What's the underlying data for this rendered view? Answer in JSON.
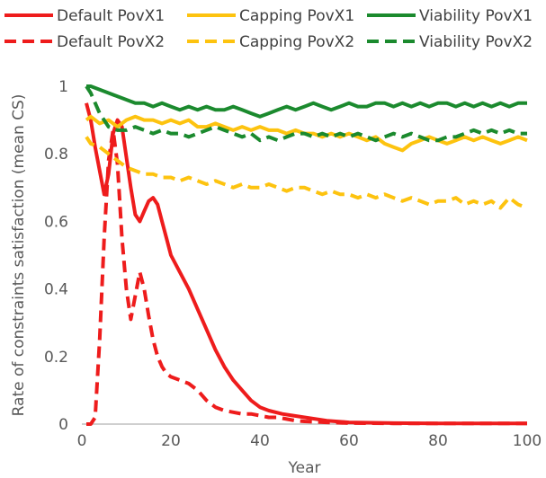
{
  "chart_data": {
    "type": "line",
    "xlabel": "Year",
    "ylabel": "Rate of constraints satisfaction (mean CS)",
    "xlim": [
      0,
      100
    ],
    "ylim": [
      0,
      1
    ],
    "x_ticks": [
      0,
      20,
      40,
      60,
      80,
      100
    ],
    "y_ticks": [
      0,
      0.2,
      0.4,
      0.6,
      0.8,
      1
    ],
    "y_tick_labels": [
      "0",
      "0.2",
      "0.4",
      "0.6",
      "0.8",
      "1"
    ],
    "grid": false,
    "legend_position": "top",
    "series": [
      {
        "name": "Default  PovX1",
        "color": "#ee1c1c",
        "dash": "solid",
        "points": [
          [
            1,
            0.95
          ],
          [
            2,
            0.9
          ],
          [
            3,
            0.82
          ],
          [
            4,
            0.75
          ],
          [
            5,
            0.68
          ],
          [
            6,
            0.74
          ],
          [
            7,
            0.86
          ],
          [
            8,
            0.9
          ],
          [
            9,
            0.88
          ],
          [
            10,
            0.79
          ],
          [
            11,
            0.7
          ],
          [
            12,
            0.62
          ],
          [
            13,
            0.6
          ],
          [
            14,
            0.63
          ],
          [
            15,
            0.66
          ],
          [
            16,
            0.67
          ],
          [
            17,
            0.65
          ],
          [
            18,
            0.6
          ],
          [
            19,
            0.55
          ],
          [
            20,
            0.5
          ],
          [
            22,
            0.45
          ],
          [
            24,
            0.4
          ],
          [
            26,
            0.34
          ],
          [
            28,
            0.28
          ],
          [
            30,
            0.22
          ],
          [
            32,
            0.17
          ],
          [
            34,
            0.13
          ],
          [
            36,
            0.1
          ],
          [
            38,
            0.07
          ],
          [
            40,
            0.05
          ],
          [
            42,
            0.04
          ],
          [
            45,
            0.03
          ],
          [
            50,
            0.02
          ],
          [
            55,
            0.01
          ],
          [
            60,
            0.005
          ],
          [
            70,
            0.003
          ],
          [
            80,
            0.002
          ],
          [
            90,
            0.002
          ],
          [
            100,
            0.002
          ]
        ]
      },
      {
        "name": "Capping PovX1",
        "color": "#fdc30f",
        "dash": "solid",
        "points": [
          [
            1,
            0.9
          ],
          [
            2,
            0.91
          ],
          [
            4,
            0.89
          ],
          [
            6,
            0.9
          ],
          [
            8,
            0.88
          ],
          [
            10,
            0.9
          ],
          [
            12,
            0.91
          ],
          [
            14,
            0.9
          ],
          [
            16,
            0.9
          ],
          [
            18,
            0.89
          ],
          [
            20,
            0.9
          ],
          [
            22,
            0.89
          ],
          [
            24,
            0.9
          ],
          [
            26,
            0.88
          ],
          [
            28,
            0.88
          ],
          [
            30,
            0.89
          ],
          [
            32,
            0.88
          ],
          [
            34,
            0.87
          ],
          [
            36,
            0.88
          ],
          [
            38,
            0.87
          ],
          [
            40,
            0.88
          ],
          [
            42,
            0.87
          ],
          [
            44,
            0.87
          ],
          [
            46,
            0.86
          ],
          [
            48,
            0.87
          ],
          [
            50,
            0.86
          ],
          [
            52,
            0.86
          ],
          [
            54,
            0.85
          ],
          [
            56,
            0.86
          ],
          [
            58,
            0.85
          ],
          [
            60,
            0.86
          ],
          [
            62,
            0.85
          ],
          [
            64,
            0.84
          ],
          [
            66,
            0.85
          ],
          [
            68,
            0.83
          ],
          [
            70,
            0.82
          ],
          [
            72,
            0.81
          ],
          [
            74,
            0.83
          ],
          [
            76,
            0.84
          ],
          [
            78,
            0.85
          ],
          [
            80,
            0.84
          ],
          [
            82,
            0.83
          ],
          [
            84,
            0.84
          ],
          [
            86,
            0.85
          ],
          [
            88,
            0.84
          ],
          [
            90,
            0.85
          ],
          [
            92,
            0.84
          ],
          [
            94,
            0.83
          ],
          [
            96,
            0.84
          ],
          [
            98,
            0.85
          ],
          [
            100,
            0.84
          ]
        ]
      },
      {
        "name": "Viability PovX1",
        "color": "#1b8a2e",
        "dash": "solid",
        "points": [
          [
            1,
            1.0
          ],
          [
            2,
            1.0
          ],
          [
            4,
            0.99
          ],
          [
            6,
            0.98
          ],
          [
            8,
            0.97
          ],
          [
            10,
            0.96
          ],
          [
            12,
            0.95
          ],
          [
            14,
            0.95
          ],
          [
            16,
            0.94
          ],
          [
            18,
            0.95
          ],
          [
            20,
            0.94
          ],
          [
            22,
            0.93
          ],
          [
            24,
            0.94
          ],
          [
            26,
            0.93
          ],
          [
            28,
            0.94
          ],
          [
            30,
            0.93
          ],
          [
            32,
            0.93
          ],
          [
            34,
            0.94
          ],
          [
            36,
            0.93
          ],
          [
            38,
            0.92
          ],
          [
            40,
            0.91
          ],
          [
            42,
            0.92
          ],
          [
            44,
            0.93
          ],
          [
            46,
            0.94
          ],
          [
            48,
            0.93
          ],
          [
            50,
            0.94
          ],
          [
            52,
            0.95
          ],
          [
            54,
            0.94
          ],
          [
            56,
            0.93
          ],
          [
            58,
            0.94
          ],
          [
            60,
            0.95
          ],
          [
            62,
            0.94
          ],
          [
            64,
            0.94
          ],
          [
            66,
            0.95
          ],
          [
            68,
            0.95
          ],
          [
            70,
            0.94
          ],
          [
            72,
            0.95
          ],
          [
            74,
            0.94
          ],
          [
            76,
            0.95
          ],
          [
            78,
            0.94
          ],
          [
            80,
            0.95
          ],
          [
            82,
            0.95
          ],
          [
            84,
            0.94
          ],
          [
            86,
            0.95
          ],
          [
            88,
            0.94
          ],
          [
            90,
            0.95
          ],
          [
            92,
            0.94
          ],
          [
            94,
            0.95
          ],
          [
            96,
            0.94
          ],
          [
            98,
            0.95
          ],
          [
            100,
            0.95
          ]
        ]
      },
      {
        "name": "Default  PovX2",
        "color": "#ee1c1c",
        "dash": "dashed",
        "points": [
          [
            1,
            0.0
          ],
          [
            2,
            0.0
          ],
          [
            3,
            0.02
          ],
          [
            4,
            0.25
          ],
          [
            5,
            0.55
          ],
          [
            6,
            0.78
          ],
          [
            7,
            0.87
          ],
          [
            8,
            0.77
          ],
          [
            9,
            0.55
          ],
          [
            10,
            0.4
          ],
          [
            11,
            0.31
          ],
          [
            12,
            0.38
          ],
          [
            13,
            0.45
          ],
          [
            14,
            0.4
          ],
          [
            15,
            0.32
          ],
          [
            16,
            0.25
          ],
          [
            17,
            0.2
          ],
          [
            18,
            0.17
          ],
          [
            19,
            0.15
          ],
          [
            20,
            0.14
          ],
          [
            22,
            0.13
          ],
          [
            24,
            0.12
          ],
          [
            26,
            0.1
          ],
          [
            28,
            0.07
          ],
          [
            30,
            0.05
          ],
          [
            32,
            0.04
          ],
          [
            34,
            0.035
          ],
          [
            36,
            0.03
          ],
          [
            38,
            0.03
          ],
          [
            40,
            0.025
          ],
          [
            42,
            0.02
          ],
          [
            44,
            0.02
          ],
          [
            46,
            0.015
          ],
          [
            48,
            0.01
          ],
          [
            50,
            0.008
          ],
          [
            55,
            0.005
          ],
          [
            60,
            0.003
          ],
          [
            70,
            0.002
          ],
          [
            80,
            0.002
          ],
          [
            90,
            0.002
          ],
          [
            100,
            0.002
          ]
        ]
      },
      {
        "name": "Capping PovX2",
        "color": "#fdc30f",
        "dash": "dashed",
        "points": [
          [
            1,
            0.85
          ],
          [
            2,
            0.83
          ],
          [
            4,
            0.82
          ],
          [
            6,
            0.8
          ],
          [
            8,
            0.78
          ],
          [
            10,
            0.76
          ],
          [
            12,
            0.75
          ],
          [
            14,
            0.74
          ],
          [
            16,
            0.74
          ],
          [
            18,
            0.73
          ],
          [
            20,
            0.73
          ],
          [
            22,
            0.72
          ],
          [
            24,
            0.73
          ],
          [
            26,
            0.72
          ],
          [
            28,
            0.71
          ],
          [
            30,
            0.72
          ],
          [
            32,
            0.71
          ],
          [
            34,
            0.7
          ],
          [
            36,
            0.71
          ],
          [
            38,
            0.7
          ],
          [
            40,
            0.7
          ],
          [
            42,
            0.71
          ],
          [
            44,
            0.7
          ],
          [
            46,
            0.69
          ],
          [
            48,
            0.7
          ],
          [
            50,
            0.7
          ],
          [
            52,
            0.69
          ],
          [
            54,
            0.68
          ],
          [
            56,
            0.69
          ],
          [
            58,
            0.68
          ],
          [
            60,
            0.68
          ],
          [
            62,
            0.67
          ],
          [
            64,
            0.68
          ],
          [
            66,
            0.67
          ],
          [
            68,
            0.68
          ],
          [
            70,
            0.67
          ],
          [
            72,
            0.66
          ],
          [
            74,
            0.67
          ],
          [
            76,
            0.66
          ],
          [
            78,
            0.65
          ],
          [
            80,
            0.66
          ],
          [
            82,
            0.66
          ],
          [
            84,
            0.67
          ],
          [
            86,
            0.65
          ],
          [
            88,
            0.66
          ],
          [
            90,
            0.65
          ],
          [
            92,
            0.66
          ],
          [
            94,
            0.64
          ],
          [
            96,
            0.67
          ],
          [
            98,
            0.65
          ],
          [
            100,
            0.64
          ]
        ]
      },
      {
        "name": "Viability PovX2",
        "color": "#1b8a2e",
        "dash": "dashed",
        "points": [
          [
            1,
            1.0
          ],
          [
            2,
            0.98
          ],
          [
            4,
            0.92
          ],
          [
            6,
            0.88
          ],
          [
            8,
            0.87
          ],
          [
            10,
            0.87
          ],
          [
            12,
            0.88
          ],
          [
            14,
            0.87
          ],
          [
            16,
            0.86
          ],
          [
            18,
            0.87
          ],
          [
            20,
            0.86
          ],
          [
            22,
            0.86
          ],
          [
            24,
            0.85
          ],
          [
            26,
            0.86
          ],
          [
            28,
            0.87
          ],
          [
            30,
            0.88
          ],
          [
            32,
            0.87
          ],
          [
            34,
            0.86
          ],
          [
            36,
            0.85
          ],
          [
            38,
            0.86
          ],
          [
            40,
            0.84
          ],
          [
            42,
            0.85
          ],
          [
            44,
            0.84
          ],
          [
            46,
            0.85
          ],
          [
            48,
            0.86
          ],
          [
            50,
            0.86
          ],
          [
            52,
            0.85
          ],
          [
            54,
            0.86
          ],
          [
            56,
            0.85
          ],
          [
            58,
            0.86
          ],
          [
            60,
            0.85
          ],
          [
            62,
            0.86
          ],
          [
            64,
            0.85
          ],
          [
            66,
            0.84
          ],
          [
            68,
            0.85
          ],
          [
            70,
            0.86
          ],
          [
            72,
            0.85
          ],
          [
            74,
            0.86
          ],
          [
            76,
            0.85
          ],
          [
            78,
            0.84
          ],
          [
            80,
            0.84
          ],
          [
            82,
            0.85
          ],
          [
            84,
            0.85
          ],
          [
            86,
            0.86
          ],
          [
            88,
            0.87
          ],
          [
            90,
            0.86
          ],
          [
            92,
            0.87
          ],
          [
            94,
            0.86
          ],
          [
            96,
            0.87
          ],
          [
            98,
            0.86
          ],
          [
            100,
            0.86
          ]
        ]
      }
    ]
  }
}
